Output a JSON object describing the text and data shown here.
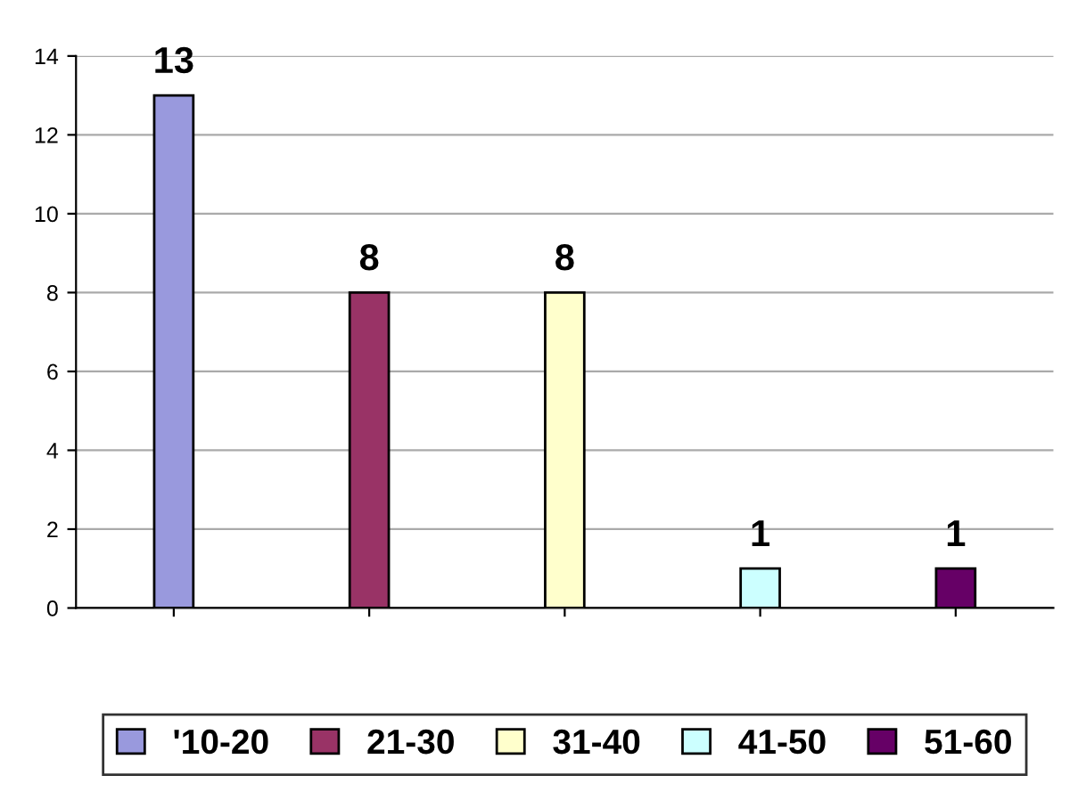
{
  "chart_data": {
    "type": "bar",
    "categories": [
      null,
      null,
      null,
      null,
      null
    ],
    "series": [
      {
        "name": "'10-20",
        "color": "#9999dd",
        "values": [
          13,
          null,
          null,
          null,
          null
        ]
      },
      {
        "name": "21-30",
        "color": "#993366",
        "values": [
          null,
          8,
          null,
          null,
          null
        ]
      },
      {
        "name": "31-40",
        "color": "#ffffcc",
        "values": [
          null,
          null,
          8,
          null,
          null
        ]
      },
      {
        "name": "41-50",
        "color": "#ccffff",
        "values": [
          null,
          null,
          null,
          1,
          null
        ]
      },
      {
        "name": "51-60",
        "color": "#660066",
        "values": [
          null,
          null,
          null,
          null,
          1
        ]
      }
    ],
    "ylim": [
      0,
      14
    ],
    "yticks": [
      0,
      2,
      4,
      6,
      8,
      10,
      12,
      14
    ],
    "grid": "y",
    "legend": "bottom",
    "data_labels": true,
    "tick_labels": "y"
  }
}
